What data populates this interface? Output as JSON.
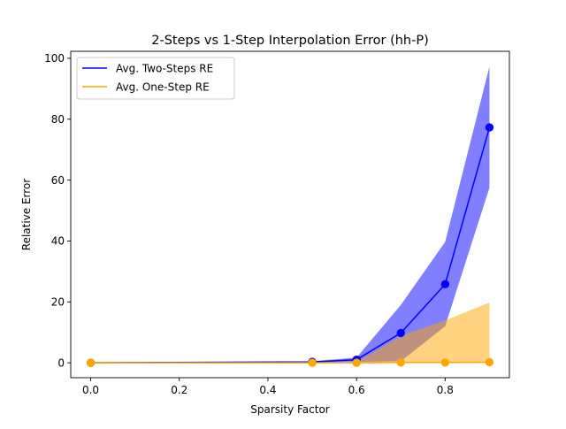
{
  "chart_data": {
    "type": "line",
    "title": "2-Steps vs 1-Step Interpolation Error (hh-P)",
    "xlabel": "Sparsity Factor",
    "ylabel": "Relative Error",
    "xlim": [
      -0.045,
      0.945
    ],
    "ylim": [
      -4.9,
      102.3
    ],
    "xticks": [
      0.0,
      0.2,
      0.4,
      0.6,
      0.8
    ],
    "xtick_labels": [
      "0.0",
      "0.2",
      "0.4",
      "0.6",
      "0.8"
    ],
    "yticks": [
      0,
      20,
      40,
      60,
      80,
      100
    ],
    "ytick_labels": [
      "0",
      "20",
      "40",
      "60",
      "80",
      "100"
    ],
    "grid": false,
    "legend_position": "upper-left",
    "x": [
      0.0,
      0.5,
      0.6,
      0.7,
      0.8,
      0.9
    ],
    "series": [
      {
        "name": "Avg. Two-Steps RE",
        "color": "#0000ff",
        "values": [
          0.0,
          0.3,
          1.0,
          9.8,
          25.8,
          77.3
        ],
        "band_lower": [
          0.0,
          0.1,
          0.3,
          0.5,
          12.0,
          57.5
        ],
        "band_upper": [
          0.0,
          0.5,
          1.7,
          19.0,
          39.7,
          97.3
        ],
        "band_color": "#0000ff",
        "band_alpha": 0.5
      },
      {
        "name": "Avg. One-Step RE",
        "color": "#ffa500",
        "values": [
          0.0,
          0.0,
          0.0,
          0.1,
          0.1,
          0.2
        ],
        "band_lower": [
          0.0,
          0.0,
          0.0,
          0.0,
          0.0,
          0.0
        ],
        "band_upper": [
          0.0,
          0.1,
          0.2,
          8.9,
          13.9,
          19.8
        ],
        "band_color": "#ffa500",
        "band_alpha": 0.5
      }
    ]
  }
}
